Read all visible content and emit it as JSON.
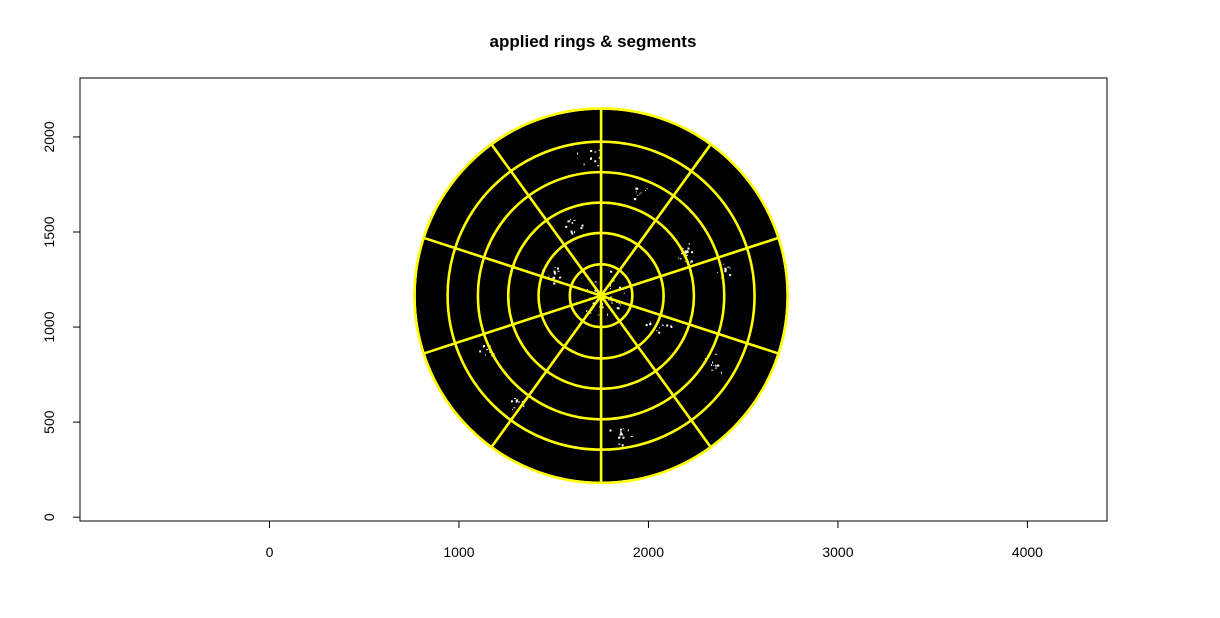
{
  "chart_data": {
    "type": "scatter",
    "title": "applied rings & segments",
    "xlabel": "",
    "ylabel": "",
    "xlim": [
      -1000,
      4420
    ],
    "ylim": [
      -20,
      2310
    ],
    "xticks": [
      0,
      1000,
      2000,
      3000,
      4000
    ],
    "yticks": [
      0,
      500,
      1000,
      1500,
      2000
    ],
    "grid": false,
    "colors": {
      "disc": "#000000",
      "rings": "#ffff00",
      "specks": "#ffffff",
      "axes": "#000000"
    },
    "disc": {
      "cx": 1750,
      "cy": 1165,
      "r": 978
    },
    "rings": {
      "cx": 1750,
      "cy": 1165,
      "radii": [
        165,
        330,
        490,
        650,
        810,
        985
      ],
      "color": "#ffff00"
    },
    "segments": {
      "count": 10,
      "start_angle_deg": 18,
      "inner_radius": 0,
      "outer_radius": 985,
      "color": "#ffff00"
    }
  }
}
